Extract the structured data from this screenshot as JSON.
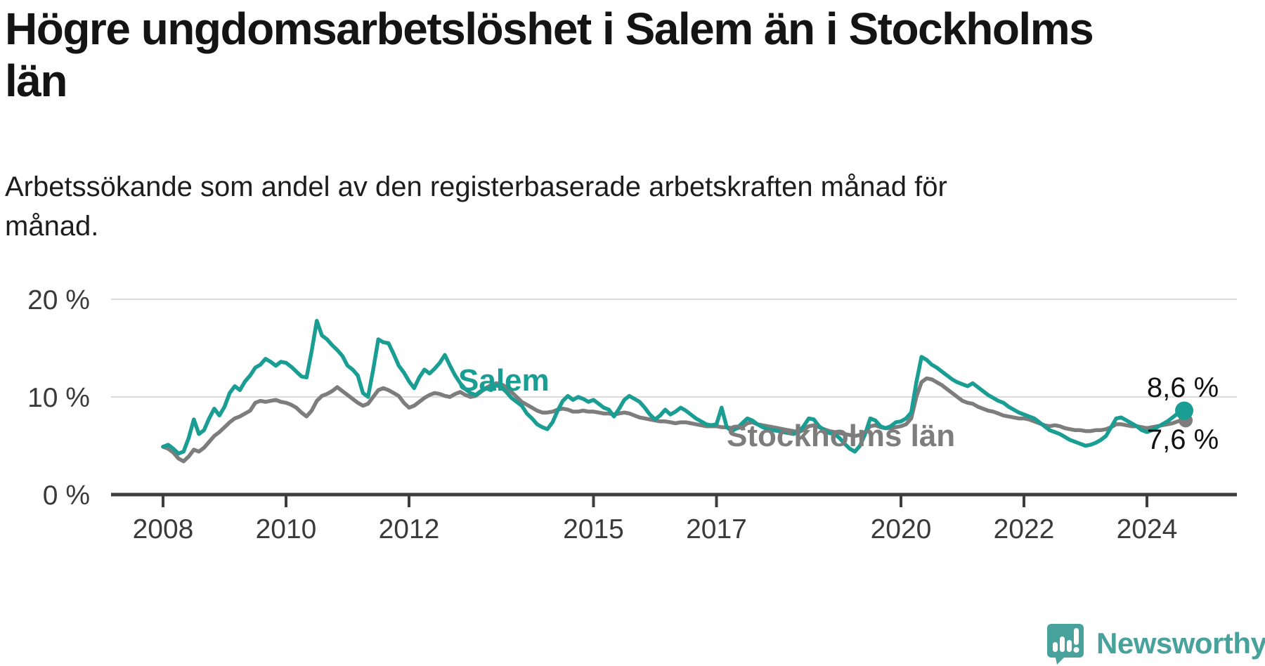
{
  "title": {
    "full": "Högre ungdomsarbetslöshet i Salem än i Stockholms län",
    "lines": [
      "Högre ungdomsarbetslöshet i Salem än i Stockholms",
      "län"
    ]
  },
  "subtitle": {
    "full": "Arbetssökande som andel av den registerbaserade arbetskraften månad för månad.",
    "lines": [
      "Arbetssökande som andel av den registerbaserade arbetskraften månad för",
      "månad."
    ]
  },
  "chart_data": {
    "type": "line",
    "frequency": "monthly",
    "start": "2008-01",
    "end": "2024-08",
    "unit": "%",
    "ylim": [
      0,
      20
    ],
    "grid": "horizontal",
    "x_ticks": [
      2008,
      2010,
      2012,
      2015,
      2017,
      2020,
      2022,
      2024
    ],
    "y_ticks": [
      {
        "value": 0,
        "label": "0 %"
      },
      {
        "value": 10,
        "label": "10 %"
      },
      {
        "value": 20,
        "label": "20 %"
      }
    ],
    "series": [
      {
        "name": "Stockholms län",
        "color": "#7d7d7d",
        "end_label": "7,6 %",
        "end_value": 7.6,
        "values": [
          4.9,
          4.7,
          4.3,
          3.7,
          3.4,
          3.9,
          4.6,
          4.4,
          4.8,
          5.4,
          6.0,
          6.4,
          6.9,
          7.4,
          7.8,
          8.0,
          8.3,
          8.6,
          9.4,
          9.6,
          9.5,
          9.6,
          9.7,
          9.5,
          9.4,
          9.2,
          8.9,
          8.4,
          8.0,
          8.6,
          9.6,
          10.1,
          10.3,
          10.6,
          11.0,
          10.6,
          10.2,
          9.8,
          9.4,
          9.1,
          9.3,
          10.0,
          10.7,
          10.9,
          10.7,
          10.4,
          10.1,
          9.4,
          8.9,
          9.1,
          9.5,
          9.9,
          10.2,
          10.4,
          10.3,
          10.1,
          10.0,
          10.3,
          10.5,
          10.2,
          10.0,
          10.1,
          10.5,
          10.9,
          11.2,
          11.4,
          11.3,
          11.0,
          10.5,
          10.0,
          9.5,
          9.2,
          8.9,
          8.6,
          8.4,
          8.4,
          8.5,
          8.7,
          8.8,
          8.7,
          8.5,
          8.5,
          8.6,
          8.5,
          8.5,
          8.4,
          8.3,
          8.3,
          8.2,
          8.3,
          8.4,
          8.3,
          8.1,
          7.9,
          7.8,
          7.7,
          7.6,
          7.5,
          7.5,
          7.4,
          7.3,
          7.4,
          7.4,
          7.3,
          7.2,
          7.1,
          7.0,
          7.0,
          7.0,
          6.9,
          6.9,
          6.8,
          6.8,
          6.9,
          7.3,
          7.4,
          7.2,
          7.1,
          7.0,
          6.9,
          6.8,
          6.7,
          6.6,
          6.5,
          6.4,
          6.6,
          7.0,
          7.1,
          6.9,
          6.7,
          6.5,
          6.4,
          6.3,
          6.2,
          6.1,
          6.0,
          6.1,
          6.4,
          7.0,
          7.1,
          6.9,
          6.8,
          6.8,
          6.9,
          7.0,
          7.2,
          7.8,
          10.0,
          11.5,
          11.9,
          11.8,
          11.5,
          11.2,
          10.8,
          10.4,
          10.0,
          9.6,
          9.4,
          9.3,
          9.0,
          8.8,
          8.6,
          8.5,
          8.3,
          8.1,
          8.0,
          7.9,
          7.8,
          7.8,
          7.7,
          7.5,
          7.3,
          7.1,
          7.0,
          7.1,
          7.0,
          6.8,
          6.7,
          6.6,
          6.6,
          6.5,
          6.5,
          6.6,
          6.6,
          6.7,
          6.9,
          7.2,
          7.2,
          7.1,
          7.0,
          7.0,
          6.9,
          6.8,
          6.9,
          7.0,
          7.1,
          7.2,
          7.3,
          7.5,
          7.6
        ]
      },
      {
        "name": "Salem",
        "color": "#1a9e93",
        "end_label": "8,6 %",
        "end_value": 8.6,
        "values": [
          4.9,
          5.1,
          4.7,
          4.2,
          4.4,
          5.8,
          7.7,
          6.2,
          6.6,
          7.8,
          8.8,
          8.1,
          9.0,
          10.4,
          11.1,
          10.7,
          11.6,
          12.2,
          13.0,
          13.3,
          13.9,
          13.6,
          13.2,
          13.6,
          13.5,
          13.1,
          12.6,
          12.1,
          12.0,
          14.7,
          17.8,
          16.3,
          15.9,
          15.3,
          14.8,
          14.2,
          13.2,
          12.8,
          12.2,
          10.4,
          10.0,
          12.8,
          15.9,
          15.6,
          15.5,
          14.4,
          13.2,
          12.5,
          11.6,
          10.9,
          12.0,
          12.8,
          12.4,
          12.9,
          13.5,
          14.3,
          13.2,
          12.2,
          11.4,
          10.8,
          10.4,
          10.2,
          10.6,
          10.9,
          10.7,
          11.2,
          11.0,
          10.5,
          9.9,
          9.5,
          9.1,
          8.3,
          7.8,
          7.2,
          6.9,
          6.7,
          7.4,
          8.6,
          9.6,
          10.1,
          9.7,
          10.0,
          9.8,
          9.5,
          9.7,
          9.3,
          8.9,
          8.7,
          8.0,
          8.8,
          9.7,
          10.1,
          9.8,
          9.5,
          8.9,
          8.2,
          7.7,
          8.1,
          8.7,
          8.2,
          8.5,
          8.9,
          8.6,
          8.2,
          7.8,
          7.5,
          7.2,
          7.1,
          7.2,
          8.9,
          6.9,
          6.5,
          6.8,
          7.3,
          7.8,
          7.6,
          7.2,
          6.9,
          6.7,
          6.6,
          6.5,
          6.4,
          6.3,
          6.2,
          6.4,
          7.0,
          7.8,
          7.7,
          7.0,
          6.6,
          6.3,
          6.2,
          5.8,
          5.2,
          4.7,
          4.4,
          5.0,
          6.2,
          7.8,
          7.6,
          7.0,
          6.8,
          7.0,
          7.4,
          7.5,
          7.8,
          8.4,
          11.5,
          14.1,
          13.8,
          13.3,
          13.0,
          12.6,
          12.2,
          11.8,
          11.5,
          11.3,
          11.1,
          11.4,
          11.0,
          10.6,
          10.2,
          9.9,
          9.6,
          9.4,
          9.0,
          8.7,
          8.4,
          8.2,
          8.0,
          7.8,
          7.4,
          7.0,
          6.6,
          6.4,
          6.2,
          5.9,
          5.6,
          5.4,
          5.2,
          5.0,
          5.1,
          5.3,
          5.6,
          6.0,
          6.9,
          7.8,
          7.9,
          7.6,
          7.3,
          7.0,
          6.6,
          6.4,
          6.6,
          6.9,
          7.2,
          7.5,
          7.9,
          8.3,
          8.6
        ]
      }
    ],
    "annotations": {
      "salem_label": "Salem",
      "sthlm_label": "Stockholms län"
    },
    "colors": {
      "salem": "#1a9e93",
      "stockholm": "#7d7d7d",
      "gridline": "#dcdcdc",
      "axis": "#3d3d3d",
      "tick_text": "#3a3a3a"
    }
  },
  "branding": {
    "logo_text": "Newsworthy",
    "logo_color": "#47a29b"
  }
}
